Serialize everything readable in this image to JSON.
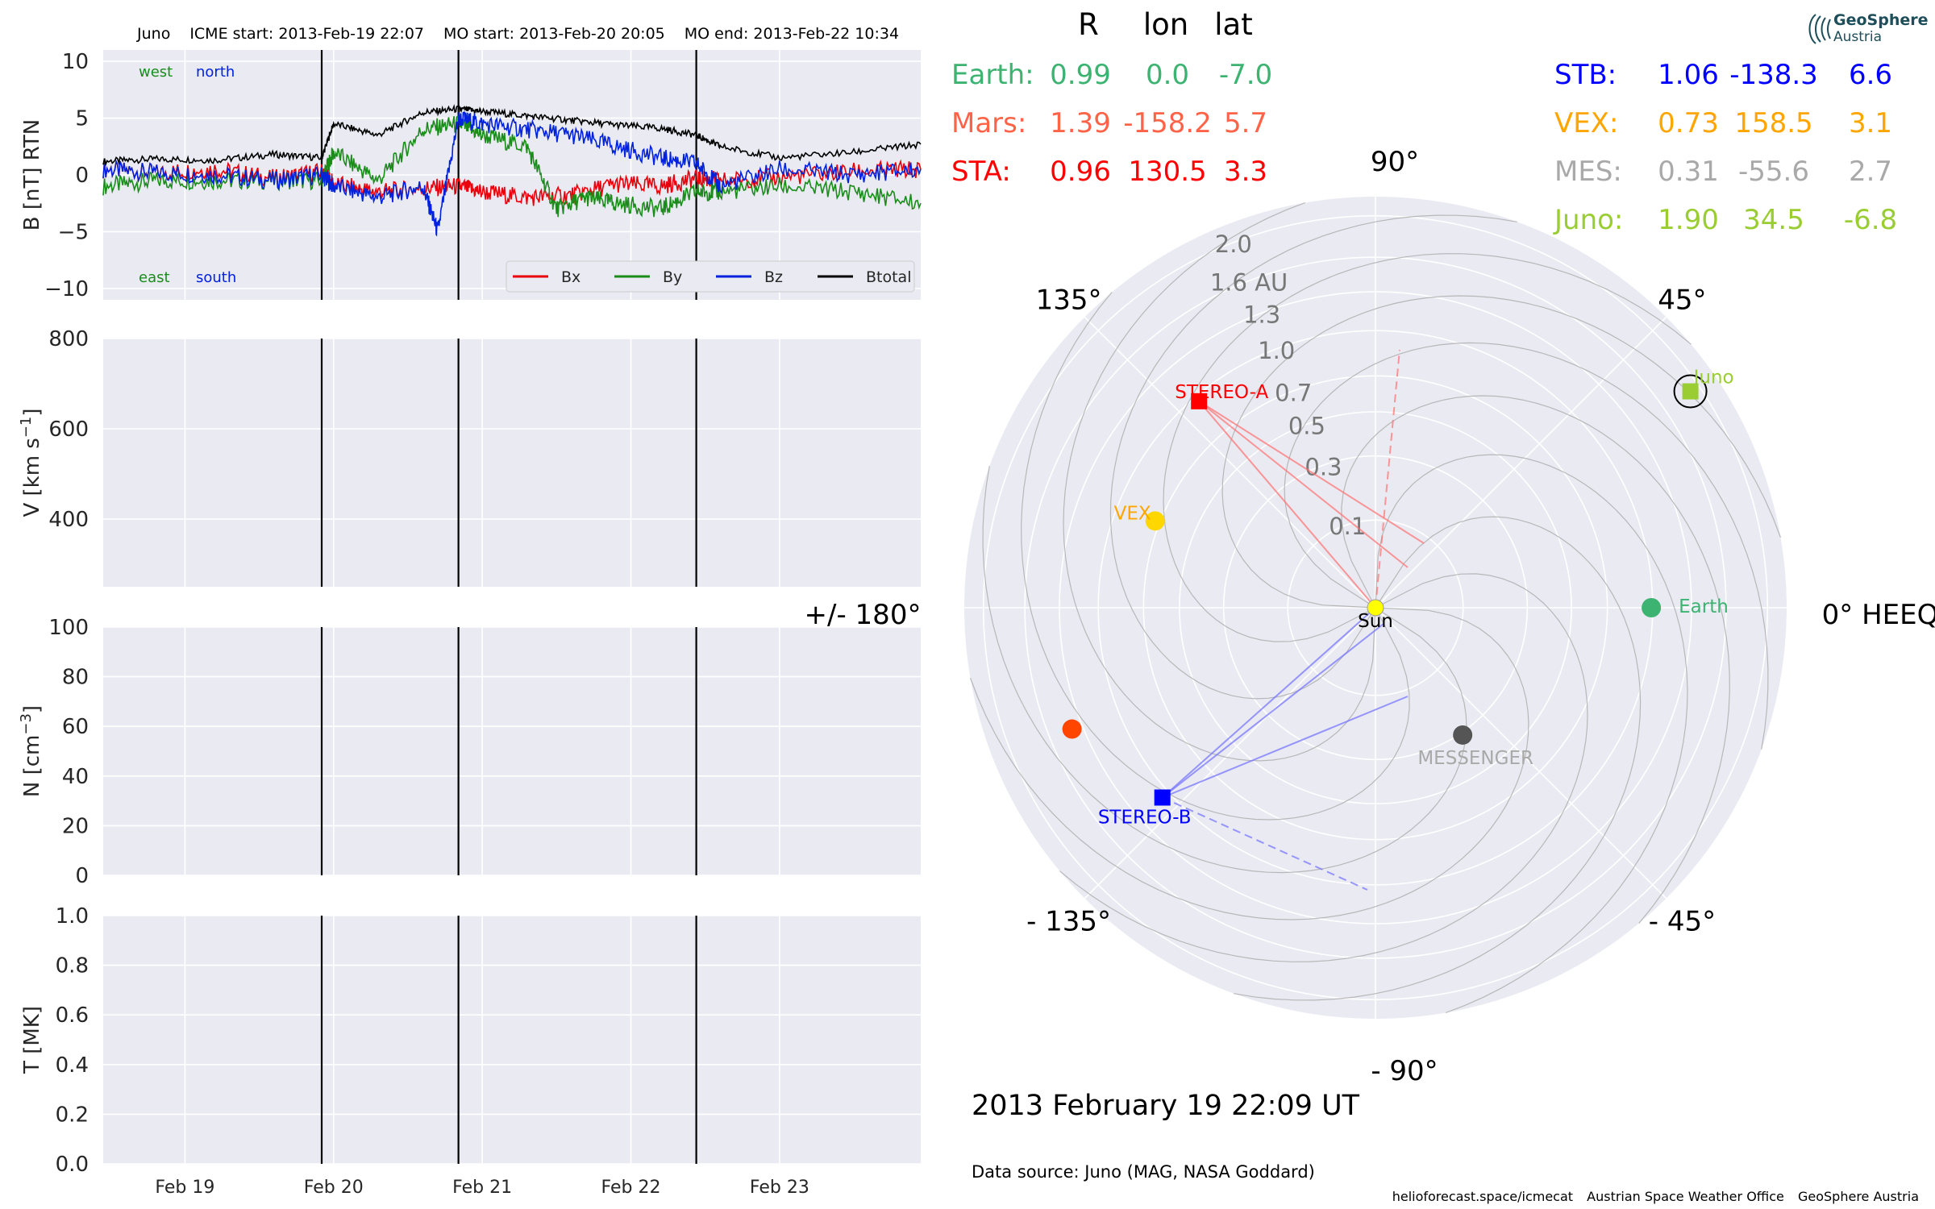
{
  "header": {
    "spacecraft": "Juno",
    "icme_start": "ICME start: 2013-Feb-19 22:07",
    "mo_start": "MO start: 2013-Feb-20 20:05",
    "mo_end": "MO end: 2013-Feb-22 10:34"
  },
  "chart_data": [
    {
      "type": "line",
      "id": "magnetic-field",
      "ylabel": "B [nT] RTN",
      "ylim": [
        -11,
        11
      ],
      "yticks": [
        -10,
        -5,
        0,
        5,
        10
      ],
      "xticks": [
        "Feb 19",
        "Feb 20",
        "Feb 21",
        "Feb 22",
        "Feb 23"
      ],
      "xlim_days": [
        18.45,
        23.95
      ],
      "annotations": {
        "top_left": "west",
        "top_right": "north",
        "bottom_left": "east",
        "bottom_right": "south"
      },
      "event_lines_days": [
        19.92,
        20.84,
        22.44
      ],
      "legend": {
        "placement": "lower-right",
        "entries": [
          "Bx",
          "By",
          "Bz",
          "Btotal"
        ]
      },
      "series": [
        {
          "name": "Bx",
          "color": "#e8000b",
          "x": [
            18.45,
            18.8,
            19.2,
            19.6,
            19.92,
            20.0,
            20.3,
            20.6,
            20.84,
            21.0,
            21.3,
            21.6,
            21.9,
            22.2,
            22.44,
            22.6,
            23.0,
            23.5,
            23.95
          ],
          "y": [
            0.5,
            0.2,
            0.5,
            -0.3,
            0.3,
            -0.8,
            -1.5,
            -1.2,
            -1.0,
            -1.5,
            -2.0,
            -1.8,
            -0.8,
            -1.0,
            -0.3,
            -0.5,
            -0.2,
            0.3,
            0.5
          ]
        },
        {
          "name": "By",
          "color": "#1a8c1a",
          "x": [
            18.45,
            18.8,
            19.2,
            19.6,
            19.92,
            20.0,
            20.3,
            20.6,
            20.84,
            21.0,
            21.3,
            21.5,
            21.7,
            21.9,
            22.2,
            22.44,
            22.6,
            23.0,
            23.5,
            23.95
          ],
          "y": [
            -1.0,
            -0.5,
            -0.5,
            -0.5,
            -0.5,
            2.0,
            -0.5,
            4.0,
            4.5,
            3.5,
            2.5,
            -3.0,
            -2.0,
            -2.5,
            -3.0,
            -1.5,
            -1.5,
            -1.0,
            -1.5,
            -2.5
          ]
        },
        {
          "name": "Bz",
          "color": "#0022dd",
          "x": [
            18.45,
            18.8,
            19.2,
            19.6,
            19.92,
            20.0,
            20.3,
            20.6,
            20.7,
            20.84,
            21.0,
            21.3,
            21.6,
            21.9,
            22.2,
            22.44,
            22.6,
            23.0,
            23.5,
            23.95
          ],
          "y": [
            0.5,
            0.2,
            0.0,
            -0.5,
            0.0,
            -1.0,
            -2.0,
            -1.0,
            -5.0,
            5.0,
            4.5,
            4.0,
            3.5,
            2.5,
            1.5,
            1.0,
            -1.0,
            0.5,
            0.0,
            0.5
          ]
        },
        {
          "name": "Btotal",
          "color": "#000000",
          "x": [
            18.45,
            18.8,
            19.2,
            19.6,
            19.92,
            20.0,
            20.3,
            20.6,
            20.84,
            21.0,
            21.3,
            21.6,
            21.9,
            22.2,
            22.44,
            22.6,
            23.0,
            23.5,
            23.95
          ],
          "y": [
            1.2,
            1.4,
            1.3,
            1.8,
            1.5,
            4.5,
            3.5,
            5.5,
            5.8,
            5.6,
            5.2,
            4.8,
            4.4,
            4.1,
            3.5,
            2.5,
            1.5,
            2.0,
            2.7
          ]
        }
      ]
    },
    {
      "type": "line",
      "id": "velocity",
      "ylabel": "V [km s",
      "ylabel_sup": "−1",
      "ylabel_end": "]",
      "ylim": [
        250,
        800
      ],
      "yticks": [
        400,
        600,
        800
      ],
      "series": []
    },
    {
      "type": "line",
      "id": "density",
      "ylabel": "N [cm",
      "ylabel_sup": "−3",
      "ylabel_end": "]",
      "ylim": [
        0,
        100
      ],
      "yticks": [
        0,
        20,
        40,
        60,
        80,
        100
      ],
      "series": []
    },
    {
      "type": "line",
      "id": "temperature",
      "ylabel": "T [MK]",
      "ylim": [
        0,
        1.0
      ],
      "yticks": [
        "0.0",
        "0.2",
        "0.4",
        "0.6",
        "0.8",
        "1.0"
      ],
      "series": []
    },
    {
      "type": "scatter",
      "id": "polar-positions",
      "angle_labels": [
        "0° HEEQ",
        "45°",
        "90°",
        "135°",
        "+/- 180°",
        "- 135°",
        "- 90°",
        "- 45°"
      ],
      "radial_labels": [
        "0.1",
        "0.3",
        "0.5",
        "0.7",
        "1.0",
        "1.3",
        "1.6 AU",
        "2.0"
      ],
      "points": [
        {
          "name": "Earth",
          "r": 0.99,
          "lon": 0.0,
          "marker": "circle",
          "color": "#3cb371"
        },
        {
          "name": "STEREO-A",
          "r": 0.96,
          "lon": 130.5,
          "marker": "square",
          "color": "#ff0000"
        },
        {
          "name": "STEREO-B",
          "r": 1.06,
          "lon": -138.3,
          "marker": "square",
          "color": "#0000ff"
        },
        {
          "name": "VEX",
          "r": 0.73,
          "lon": 158.5,
          "marker": "circle",
          "color": "#ffd700"
        },
        {
          "name": "MESSENGER",
          "r": 0.31,
          "lon": -55.6,
          "marker": "circle",
          "color": "#555555"
        },
        {
          "name": "",
          "r": 1.39,
          "lon": -158.2,
          "marker": "circle",
          "color": "#ff4500"
        },
        {
          "name": "Juno",
          "r": 1.9,
          "lon": 34.5,
          "marker": "square",
          "color": "#9acd32"
        },
        {
          "name": "Sun",
          "r": 0,
          "lon": 0,
          "marker": "circle",
          "color": "#ffff00"
        }
      ]
    }
  ],
  "table": {
    "headers": [
      "R",
      "lon",
      "lat"
    ],
    "left": [
      {
        "label": "Earth:",
        "r": "0.99",
        "lon": "0.0",
        "lat": "-7.0",
        "color": "#3cb371"
      },
      {
        "label": "Mars:",
        "r": "1.39",
        "lon": "-158.2",
        "lat": "5.7",
        "color": "#ff6347"
      },
      {
        "label": "STA:",
        "r": "0.96",
        "lon": "130.5",
        "lat": "3.3",
        "color": "#ff0000"
      }
    ],
    "right": [
      {
        "label": "STB:",
        "r": "1.06",
        "lon": "-138.3",
        "lat": "6.6",
        "color": "#0000ff"
      },
      {
        "label": "VEX:",
        "r": "0.73",
        "lon": "158.5",
        "lat": "3.1",
        "color": "#ffa500"
      },
      {
        "label": "MES:",
        "r": "0.31",
        "lon": "-55.6",
        "lat": "2.7",
        "color": "#a9a9a9"
      },
      {
        "label": "Juno:",
        "r": "1.90",
        "lon": "34.5",
        "lat": "-6.8",
        "color": "#9acd32"
      }
    ]
  },
  "timestamp": "2013 February 19  22:09 UT",
  "source": "Data source: Juno (MAG, NASA Goddard)",
  "footer": [
    "helioforecast.space/icmecat",
    "Austrian Space Weather Office",
    "GeoSphere Austria"
  ],
  "logo": {
    "title": "GeoSphere",
    "subtitle": "Austria"
  }
}
